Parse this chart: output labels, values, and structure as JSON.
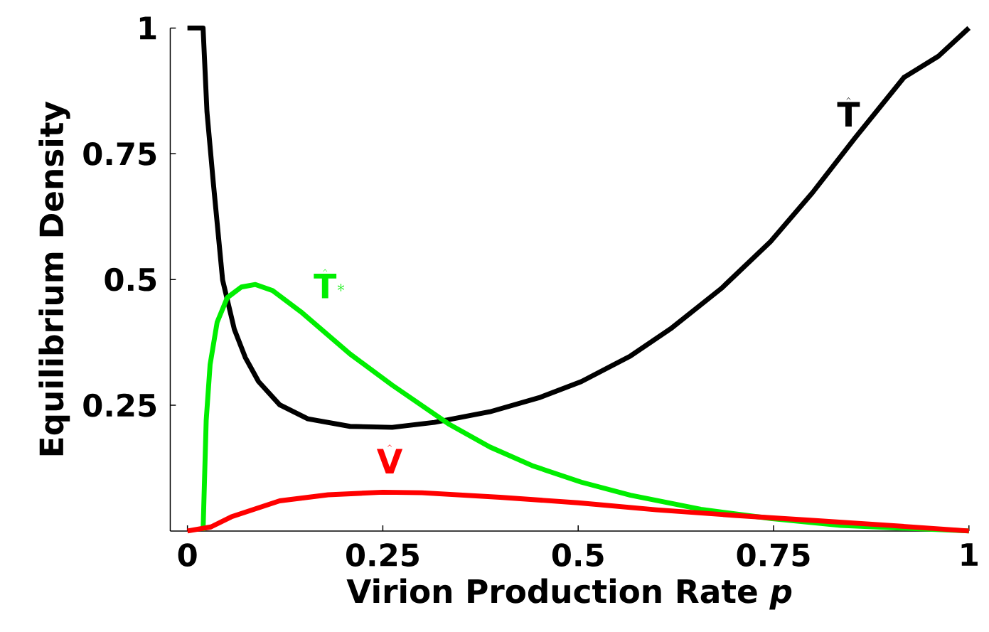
{
  "chart_data": {
    "type": "line",
    "xlabel": "Virion Production Rate *p*",
    "ylabel": "Equilibrium Density",
    "xlim": [
      -0.022,
      1
    ],
    "ylim": [
      0,
      1
    ],
    "xticks": [
      0,
      0.25,
      0.5,
      0.75,
      1
    ],
    "yticks": [
      0.25,
      0.5,
      0.75,
      1
    ],
    "marker": "none",
    "line_style": "solid",
    "series": [
      {
        "name": "\\hat{\\mathbf{T}}",
        "color": "#000000",
        "x": [
          0,
          0.02,
          0.025,
          0.033,
          0.045,
          0.06,
          0.074,
          0.091,
          0.118,
          0.154,
          0.208,
          0.262,
          0.316,
          0.387,
          0.45,
          0.504,
          0.567,
          0.62,
          0.683,
          0.746,
          0.8,
          0.854,
          0.917,
          0.961,
          1
        ],
        "values": [
          1,
          1,
          0.833,
          0.694,
          0.499,
          0.401,
          0.345,
          0.297,
          0.251,
          0.223,
          0.208,
          0.206,
          0.216,
          0.237,
          0.265,
          0.297,
          0.348,
          0.404,
          0.482,
          0.575,
          0.673,
          0.781,
          0.902,
          0.944,
          1
        ]
      },
      {
        "name": "\\hat{\\mathbf{T}}^{*}",
        "color": "#00ee00",
        "x": [
          0.02,
          0.024,
          0.029,
          0.038,
          0.051,
          0.069,
          0.087,
          0.109,
          0.145,
          0.208,
          0.262,
          0.334,
          0.387,
          0.441,
          0.504,
          0.567,
          0.657,
          0.746,
          0.836,
          1
        ],
        "values": [
          0,
          0.22,
          0.331,
          0.415,
          0.464,
          0.485,
          0.49,
          0.478,
          0.436,
          0.352,
          0.29,
          0.213,
          0.167,
          0.13,
          0.097,
          0.071,
          0.043,
          0.025,
          0.011,
          0
        ]
      },
      {
        "name": "\\hat{\\mathbf{V}}",
        "color": "#ff0000",
        "x": [
          0,
          0.03,
          0.056,
          0.118,
          0.18,
          0.25,
          0.3,
          0.4,
          0.5,
          0.6,
          0.7,
          0.8,
          0.9,
          1
        ],
        "values": [
          0,
          0.008,
          0.028,
          0.06,
          0.072,
          0.077,
          0.076,
          0.067,
          0.056,
          0.042,
          0.031,
          0.021,
          0.011,
          0
        ]
      }
    ]
  }
}
